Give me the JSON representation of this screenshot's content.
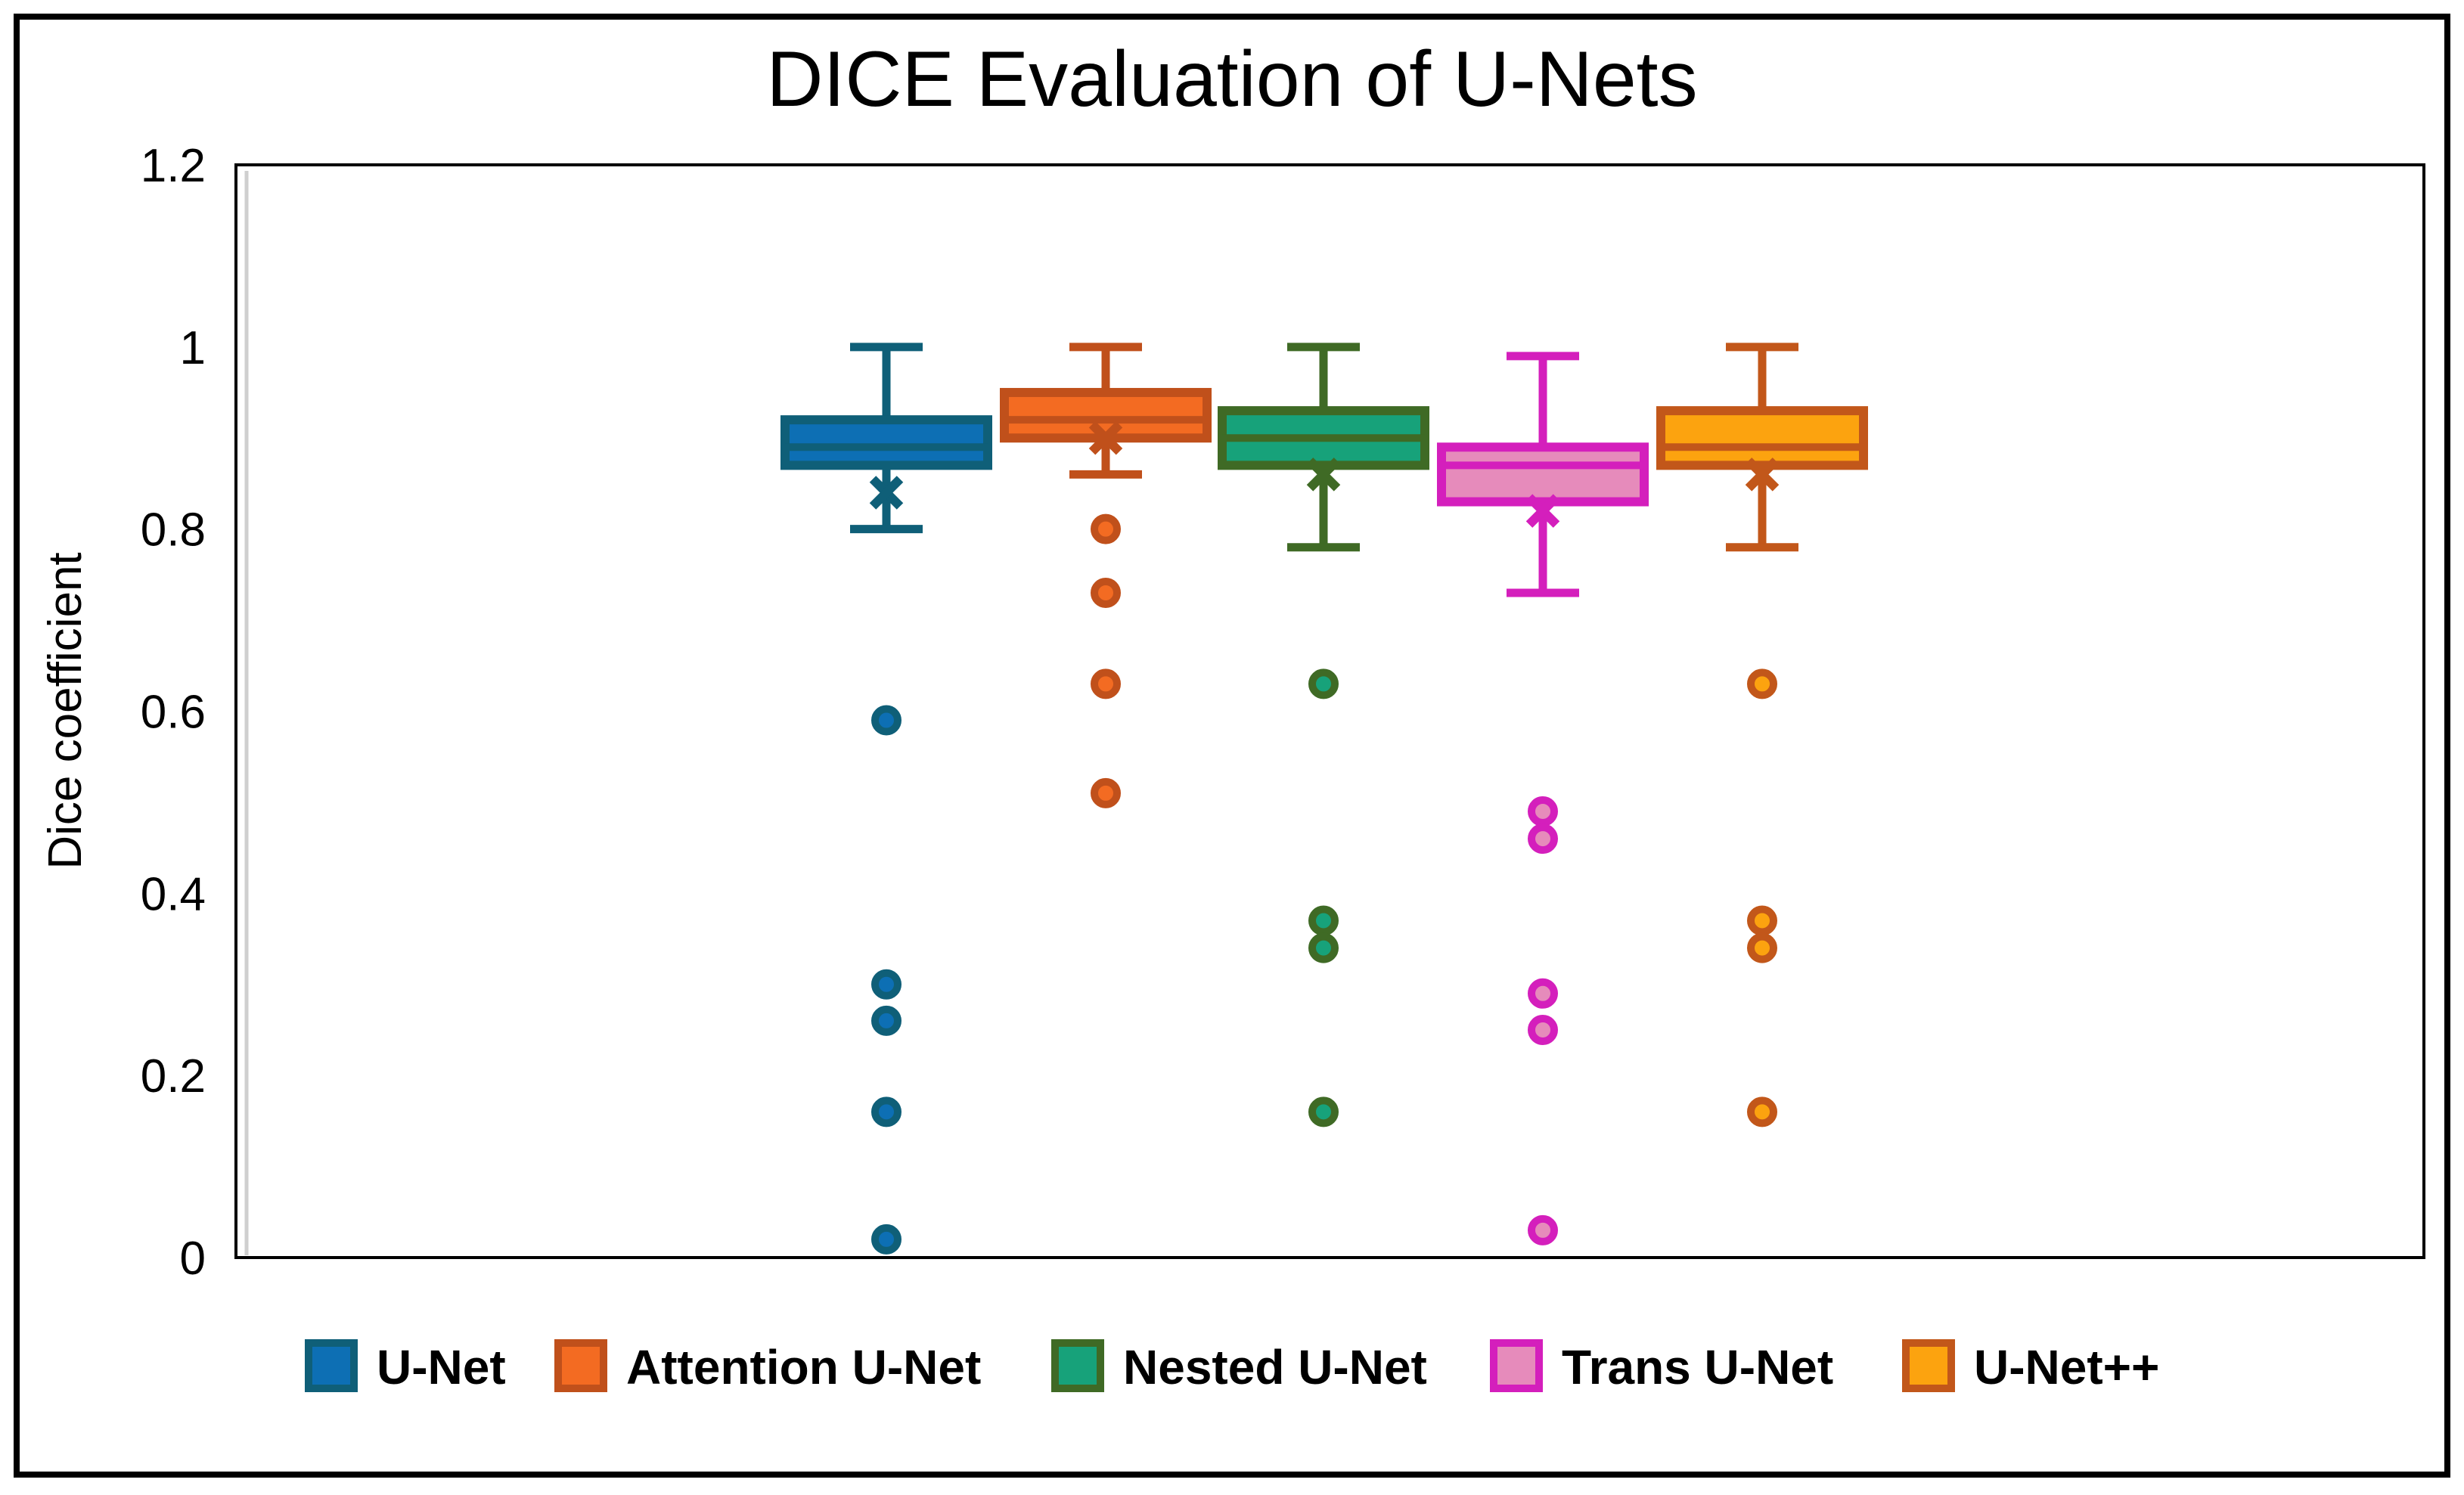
{
  "chart_data": {
    "type": "boxplot",
    "title": "DICE Evaluation of U-Nets",
    "xlabel": "",
    "ylabel": "Dice coefficient",
    "ylim": [
      0,
      1.2
    ],
    "yticks": [
      0,
      0.2,
      0.4,
      0.6,
      0.8,
      1,
      1.2
    ],
    "ytick_labels": [
      "0",
      "0.2",
      "0.4",
      "0.6",
      "0.8",
      "1",
      "1.2"
    ],
    "legend_position": "bottom",
    "series": [
      {
        "name": "U-Net",
        "fill": "#0d6fb4",
        "stroke": "#0f5f78",
        "whisker_low": 0.8,
        "q1": 0.87,
        "median": 0.89,
        "q3": 0.92,
        "whisker_high": 1.0,
        "mean": 0.84,
        "outliers": [
          0.59,
          0.3,
          0.26,
          0.16,
          0.02
        ]
      },
      {
        "name": "Attention U-Net",
        "fill": "#f36b22",
        "stroke": "#c0501b",
        "whisker_low": 0.86,
        "q1": 0.9,
        "median": 0.92,
        "q3": 0.95,
        "whisker_high": 1.0,
        "mean": 0.9,
        "outliers": [
          0.8,
          0.73,
          0.63,
          0.51
        ]
      },
      {
        "name": "Nested U-Net",
        "fill": "#17a27a",
        "stroke": "#3f6a25",
        "whisker_low": 0.78,
        "q1": 0.87,
        "median": 0.9,
        "q3": 0.93,
        "whisker_high": 1.0,
        "mean": 0.86,
        "outliers": [
          0.63,
          0.37,
          0.34,
          0.16
        ]
      },
      {
        "name": "Trans U-Net",
        "fill": "#e68bbb",
        "stroke": "#d41fbc",
        "whisker_low": 0.73,
        "q1": 0.83,
        "median": 0.87,
        "q3": 0.89,
        "whisker_high": 0.99,
        "mean": 0.82,
        "outliers": [
          0.49,
          0.46,
          0.29,
          0.25,
          0.03
        ]
      },
      {
        "name": "U-Net++",
        "fill": "#fca30f",
        "stroke": "#c2571a",
        "whisker_low": 0.78,
        "q1": 0.87,
        "median": 0.89,
        "q3": 0.93,
        "whisker_high": 1.0,
        "mean": 0.86,
        "outliers": [
          0.63,
          0.37,
          0.34,
          0.16
        ]
      }
    ]
  }
}
